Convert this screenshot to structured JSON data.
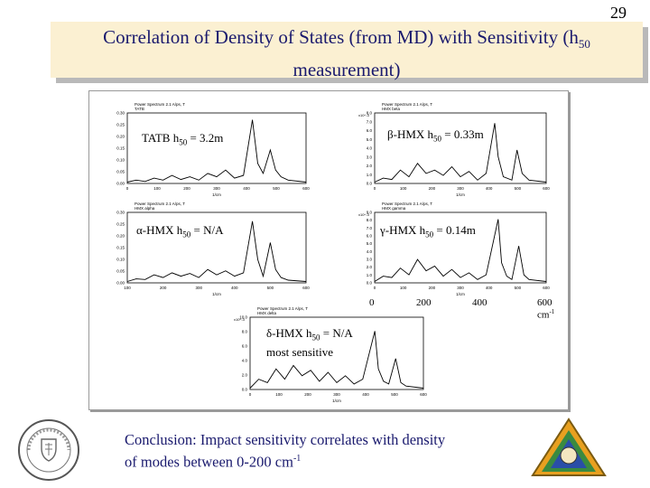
{
  "slide_number": "29",
  "title": {
    "line1_prefix": "Correlation of Density of States (from MD) with Sensitivity (h",
    "line1_sub": "50",
    "line2": "measurement)"
  },
  "panels": [
    {
      "header": "Power Spectrum 2.1 A/ps, T",
      "subheader": "TATB",
      "label_prefix": "TATB h",
      "label_sub": "50",
      "label_suffix": " = 3.2m",
      "yticks": [
        "0.30",
        "0.25",
        "0.20",
        "0.15",
        "0.10",
        "0.05",
        "0.00"
      ],
      "xticks": [
        "0",
        "100",
        "200",
        "300",
        "400",
        "500",
        "600"
      ],
      "xlabel": "1/cm"
    },
    {
      "header": "Power Spectrum 2.1 A/ps, T",
      "subheader": "HMX beta",
      "label_prefix": "β-HMX h",
      "label_sub": "50",
      "label_suffix": " = 0.33m",
      "ytop": "x10^-3",
      "yticks": [
        "8.0",
        "7.0",
        "6.0",
        "5.0",
        "4.0",
        "3.0",
        "2.0",
        "1.0",
        "0.0"
      ],
      "xticks": [
        "0",
        "100",
        "200",
        "300",
        "400",
        "500",
        "600"
      ],
      "xlabel": "1/cm"
    },
    {
      "header": "Power Spectrum 2.1 A/ps, T",
      "subheader": "HMX alpha",
      "label_prefix": "α-HMX h",
      "label_sub": "50",
      "label_suffix": " = N/A",
      "yticks": [
        "0.30",
        "0.25",
        "0.20",
        "0.15",
        "0.10",
        "0.05",
        "0.00"
      ],
      "xticks": [
        "100",
        "200",
        "300",
        "400",
        "500",
        "600"
      ],
      "xlabel": "1/cm"
    },
    {
      "header": "Power Spectrum 2.1 A/ps, T",
      "subheader": "HMX gamma",
      "label_prefix": "γ-HMX h",
      "label_sub": "50",
      "label_suffix": " = 0.14m",
      "ytop": "x10^-3",
      "yticks": [
        "9.0",
        "8.0",
        "7.0",
        "6.0",
        "5.0",
        "4.0",
        "3.0",
        "2.0",
        "1.0",
        "0.0"
      ],
      "xticks": [
        "0",
        "100",
        "200",
        "300",
        "400",
        "500",
        "600"
      ],
      "xlabel": "1/cm"
    },
    {
      "header": "Power Spectrum 2.1 A/ps, T",
      "subheader": "HMX delta",
      "label_prefix": "δ-HMX h",
      "label_sub": "50",
      "label_suffix": " = N/A",
      "label_line2": "most sensitive",
      "ytop": "x10^-3",
      "yticks": [
        "10.0",
        "8.0",
        "6.0",
        "4.0",
        "2.0",
        "0.0"
      ],
      "xticks": [
        "0",
        "100",
        "200",
        "300",
        "400",
        "500",
        "600"
      ],
      "xlabel": "1/cm"
    }
  ],
  "big_xaxis": {
    "t0": "0",
    "t1": "200",
    "t2": "400",
    "t3_prefix": "600 cm",
    "t3_sup": "-1"
  },
  "conclusion": {
    "line1": "Conclusion: Impact sensitivity correlates with density",
    "line2_prefix": "of modes between 0-200 cm",
    "line2_sup": "-1"
  },
  "colors": {
    "title_bg": "#fbf0d2",
    "title_text": "#1a1a6e",
    "conclusion_text": "#1a1a6e"
  }
}
